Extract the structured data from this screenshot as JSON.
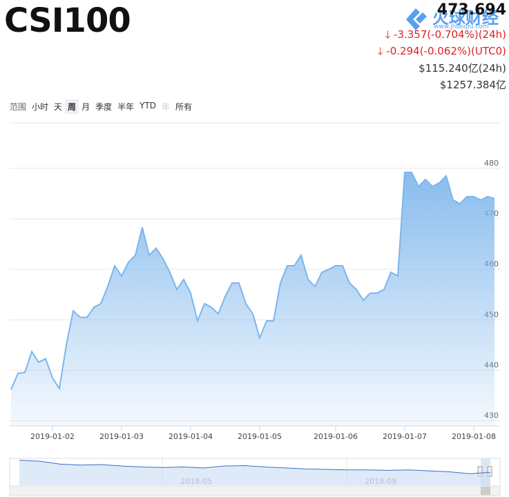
{
  "header": {
    "title": "CSI100",
    "price": "473.694",
    "change_24h": "-3.357(-0.704%)(24h)",
    "change_utc0": "-0.294(-0.062%)(UTC0)",
    "volume_24h": "$115.240亿(24h)",
    "market_cap": "$1257.384亿"
  },
  "watermark": {
    "name": "火球财经",
    "url": "www.jhuoqiu.com"
  },
  "range": {
    "label": "范围",
    "options": [
      "小时",
      "天",
      "周",
      "月",
      "季度",
      "半年",
      "YTD",
      "年",
      "所有"
    ],
    "selected": 2,
    "disabled": [
      7
    ]
  },
  "chart_data": [
    {
      "type": "area",
      "color": "#7cb5ec",
      "categories": [
        null,
        null,
        null,
        null,
        null,
        null,
        "2019-01-02",
        null,
        null,
        null,
        null,
        null,
        null,
        null,
        null,
        null,
        "2019-01-03",
        null,
        null,
        null,
        null,
        null,
        null,
        null,
        null,
        null,
        "2019-01-04",
        null,
        null,
        null,
        null,
        null,
        null,
        null,
        null,
        null,
        "2019-01-05",
        null,
        null,
        null,
        null,
        null,
        null,
        null,
        null,
        null,
        null,
        "2019-01-06",
        null,
        null,
        null,
        null,
        null,
        null,
        null,
        null,
        null,
        "2019-01-07",
        null,
        null,
        null,
        null,
        null,
        null,
        null,
        null,
        null,
        "2019-01-08",
        null,
        null,
        null
      ],
      "values": [
        436.2,
        439.4,
        439.6,
        443.7,
        441.6,
        442.3,
        438.5,
        436.4,
        445,
        451.8,
        450.5,
        450.5,
        452.5,
        453.2,
        456.6,
        460.7,
        458.7,
        461.4,
        462.8,
        468.3,
        462.8,
        464.2,
        462.1,
        459.4,
        456,
        458,
        455.3,
        449.8,
        453.2,
        452.5,
        451.2,
        454.6,
        457.3,
        457.3,
        453.2,
        451.2,
        446.4,
        449.8,
        449.8,
        457.3,
        460.7,
        460.7,
        462.8,
        458,
        456.6,
        459.4,
        460,
        460.7,
        460.7,
        457.3,
        456,
        453.9,
        455.3,
        455.3,
        456,
        459.4,
        458.7,
        479.2,
        479.2,
        476.4,
        477.8,
        476.4,
        477.1,
        478.5,
        473.7,
        473,
        474.4,
        474.4,
        473.7,
        474.4,
        474
      ],
      "ylim": [
        429,
        489
      ],
      "yticks": [
        430,
        440,
        450,
        460,
        470,
        480
      ],
      "grid": true
    },
    {
      "type": "line",
      "color": "#3a6fc4",
      "categories": [
        null,
        null,
        null,
        null,
        null,
        null,
        null,
        null,
        "2018-05",
        null,
        null,
        null,
        null,
        null,
        null,
        null,
        null,
        "2018-09",
        null,
        null,
        null,
        null,
        null,
        null
      ],
      "values": [
        700,
        690,
        660,
        650,
        655,
        640,
        630,
        625,
        630,
        620,
        640,
        645,
        630,
        620,
        610,
        605,
        600,
        600,
        595,
        600,
        590,
        580,
        560,
        575
      ],
      "ylim": [
        440,
        720
      ]
    }
  ]
}
